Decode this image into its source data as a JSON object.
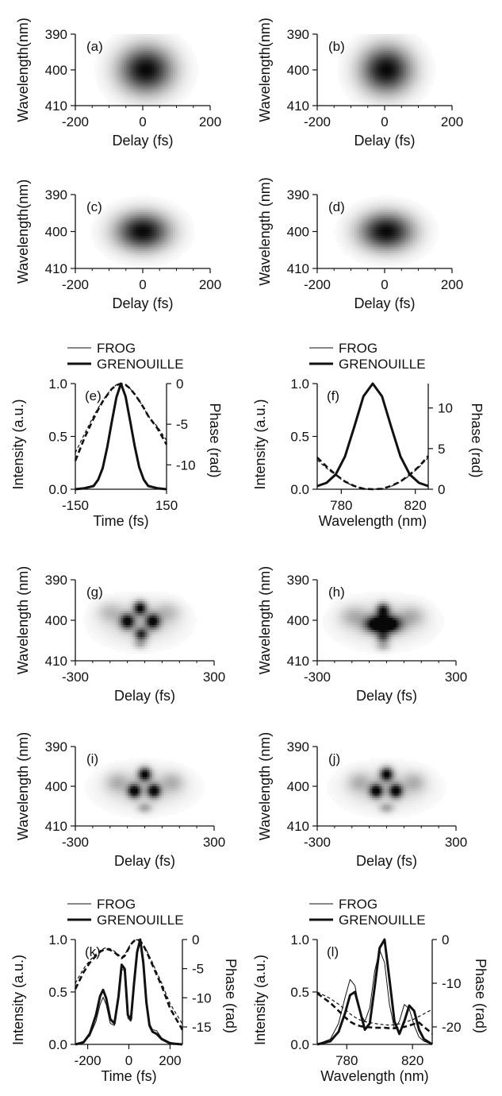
{
  "chart_data": [
    {
      "id": "a",
      "type": "heatmap",
      "panel_label": "(a)",
      "xlabel": "Delay (fs)",
      "ylabel": "Wavelength(nm)",
      "xlim": [
        -200,
        200
      ],
      "ylim": [
        410,
        390
      ],
      "xticks": [
        "-200",
        "0",
        "200"
      ],
      "yticks": [
        "390",
        "400",
        "410"
      ],
      "blobs": [
        {
          "x": 10,
          "y": 400,
          "sx": 55,
          "sy": 4.5,
          "amp": 1.0
        }
      ]
    },
    {
      "id": "b",
      "type": "heatmap",
      "panel_label": "(b)",
      "xlabel": "Delay (fs)",
      "ylabel": "Wavelength(nm)",
      "xlim": [
        -200,
        200
      ],
      "ylim": [
        410,
        390
      ],
      "xticks": [
        "-200",
        "0",
        "200"
      ],
      "yticks": [
        "390",
        "400",
        "410"
      ],
      "blobs": [
        {
          "x": 5,
          "y": 400,
          "sx": 52,
          "sy": 4.5,
          "amp": 1.0
        }
      ]
    },
    {
      "id": "c",
      "type": "heatmap",
      "panel_label": "(c)",
      "xlabel": "Delay (fs)",
      "ylabel": "Wavelength(nm)",
      "xlim": [
        -200,
        200
      ],
      "ylim": [
        410,
        390
      ],
      "xticks": [
        "-200",
        "0",
        "200"
      ],
      "yticks": [
        "390",
        "400",
        "410"
      ],
      "blobs": [
        {
          "x": 0,
          "y": 400,
          "sx": 55,
          "sy": 3.5,
          "amp": 1.0
        }
      ]
    },
    {
      "id": "d",
      "type": "heatmap",
      "panel_label": "(d)",
      "xlabel": "Delay (fs)",
      "ylabel": "Wavelength (nm)",
      "xlim": [
        -200,
        200
      ],
      "ylim": [
        410,
        390
      ],
      "xticks": [
        "-200",
        "0",
        "200"
      ],
      "yticks": [
        "390",
        "400",
        "410"
      ],
      "blobs": [
        {
          "x": 5,
          "y": 400,
          "sx": 55,
          "sy": 3.5,
          "amp": 1.0
        }
      ]
    },
    {
      "id": "e",
      "type": "line",
      "panel_label": "(e)",
      "legend": [
        "FROG",
        "GRENOUILLE"
      ],
      "xlabel": "Time (fs)",
      "ylabel": "Intensity (a.u.)",
      "y2label": "Phase (rad)",
      "xlim": [
        -150,
        150
      ],
      "ylim": [
        0,
        1.0
      ],
      "y2lim": [
        -13,
        0
      ],
      "xticks": [
        -150,
        150
      ],
      "xtick_labels": [
        "-150",
        "150"
      ],
      "yticks": [
        0.0,
        0.5,
        1.0
      ],
      "ytick_labels": [
        "0.0",
        "0.5",
        "1.0"
      ],
      "y2ticks": [
        0,
        -5,
        -10
      ],
      "y2tick_labels": [
        "0",
        "-5",
        "-10"
      ],
      "x": [
        -150,
        -120,
        -90,
        -75,
        -60,
        -45,
        -30,
        -15,
        0,
        15,
        30,
        45,
        60,
        75,
        90,
        120,
        150
      ],
      "series": [
        {
          "name": "FROG",
          "axis": "left",
          "style": "thin",
          "values": [
            0.0,
            0.01,
            0.04,
            0.1,
            0.22,
            0.42,
            0.66,
            0.88,
            1.0,
            0.89,
            0.67,
            0.43,
            0.22,
            0.1,
            0.04,
            0.01,
            0.0
          ]
        },
        {
          "name": "GRENOUILLE",
          "axis": "left",
          "style": "thick",
          "values": [
            0.0,
            0.01,
            0.03,
            0.09,
            0.2,
            0.4,
            0.64,
            0.87,
            1.0,
            0.88,
            0.65,
            0.41,
            0.21,
            0.09,
            0.03,
            0.01,
            0.0
          ]
        },
        {
          "axis": "right",
          "style": "thin-dash",
          "values": [
            -8.5,
            -6.2,
            -4.0,
            -3.0,
            -2.1,
            -1.3,
            -0.6,
            -0.15,
            0.0,
            -0.15,
            -0.6,
            -1.3,
            -2.1,
            -3.0,
            -4.0,
            -5.3,
            -7.0
          ]
        },
        {
          "axis": "right",
          "style": "thick-dash",
          "values": [
            -9.5,
            -6.7,
            -4.3,
            -3.2,
            -2.2,
            -1.4,
            -0.65,
            -0.2,
            0.0,
            -0.15,
            -0.6,
            -1.3,
            -2.1,
            -3.0,
            -4.0,
            -5.5,
            -7.5
          ]
        }
      ]
    },
    {
      "id": "f",
      "type": "line",
      "panel_label": "(f)",
      "legend": [
        "FROG",
        "GRENOUILLE"
      ],
      "xlabel": "Wavelength (nm)",
      "ylabel": "Intensity (a.u.)",
      "y2label": "Phase (rad)",
      "xlim": [
        767,
        827
      ],
      "ylim": [
        0,
        1.0
      ],
      "y2lim": [
        0,
        13
      ],
      "xticks": [
        780,
        820
      ],
      "xtick_labels": [
        "780",
        "820"
      ],
      "yticks": [
        0.0,
        0.5,
        1.0
      ],
      "ytick_labels": [
        "0.0",
        "0.5",
        "1.0"
      ],
      "y2ticks": [
        0,
        5,
        10
      ],
      "y2tick_labels": [
        "0",
        "5",
        "10"
      ],
      "x": [
        767,
        772,
        777,
        782,
        787,
        792,
        797,
        802,
        807,
        812,
        817,
        822,
        827
      ],
      "series": [
        {
          "name": "FROG",
          "axis": "left",
          "style": "thin",
          "values": [
            0.03,
            0.06,
            0.13,
            0.3,
            0.58,
            0.87,
            1.0,
            0.87,
            0.58,
            0.3,
            0.13,
            0.06,
            0.03
          ]
        },
        {
          "name": "GRENOUILLE",
          "axis": "left",
          "style": "thick",
          "values": [
            0.03,
            0.06,
            0.14,
            0.31,
            0.59,
            0.88,
            1.0,
            0.88,
            0.59,
            0.31,
            0.14,
            0.06,
            0.03
          ]
        },
        {
          "axis": "right",
          "style": "thin-dash",
          "values": [
            3.6,
            2.6,
            1.7,
            0.9,
            0.35,
            0.05,
            0.0,
            0.05,
            0.35,
            0.9,
            1.7,
            2.7,
            3.9
          ]
        },
        {
          "axis": "right",
          "style": "thick-dash",
          "values": [
            3.9,
            2.8,
            1.8,
            0.95,
            0.4,
            0.06,
            0.0,
            0.06,
            0.4,
            0.95,
            1.8,
            2.8,
            4.1
          ]
        }
      ]
    },
    {
      "id": "g",
      "type": "heatmap",
      "panel_label": "(g)",
      "xlabel": "Delay (fs)",
      "ylabel": "Wavelength (nm)",
      "xlim": [
        -300,
        300
      ],
      "ylim": [
        410,
        390
      ],
      "xticks": [
        "-300",
        "300"
      ],
      "yticks": [
        "390",
        "400",
        "410"
      ],
      "blobs": [
        {
          "x": -20,
          "y": 397,
          "sx": 20,
          "sy": 1.2,
          "amp": 0.9
        },
        {
          "x": -75,
          "y": 400.3,
          "sx": 22,
          "sy": 1.3,
          "amp": 0.9
        },
        {
          "x": 35,
          "y": 400.3,
          "sx": 22,
          "sy": 1.3,
          "amp": 0.9
        },
        {
          "x": -15,
          "y": 403.5,
          "sx": 20,
          "sy": 1.1,
          "amp": 0.75
        },
        {
          "x": -20,
          "y": 400.5,
          "sx": 110,
          "sy": 3.5,
          "amp": 0.22
        },
        {
          "x": -150,
          "y": 398,
          "sx": 40,
          "sy": 1.8,
          "amp": 0.2
        },
        {
          "x": 100,
          "y": 398,
          "sx": 40,
          "sy": 1.8,
          "amp": 0.2
        },
        {
          "x": -20,
          "y": 406,
          "sx": 20,
          "sy": 0.8,
          "amp": 0.25
        }
      ]
    },
    {
      "id": "h",
      "type": "heatmap",
      "panel_label": "(h)",
      "xlabel": "Delay (fs)",
      "ylabel": "Wavelength (nm)",
      "xlim": [
        -300,
        300
      ],
      "ylim": [
        410,
        390
      ],
      "xticks": [
        "-300",
        "300"
      ],
      "yticks": [
        "390",
        "400",
        "410"
      ],
      "blobs": [
        {
          "x": -15,
          "y": 397.5,
          "sx": 20,
          "sy": 1.2,
          "amp": 0.8
        },
        {
          "x": -45,
          "y": 401,
          "sx": 35,
          "sy": 1.4,
          "amp": 0.95
        },
        {
          "x": 15,
          "y": 401,
          "sx": 35,
          "sy": 1.4,
          "amp": 0.95
        },
        {
          "x": -15,
          "y": 404.2,
          "sx": 20,
          "sy": 1.0,
          "amp": 0.55
        },
        {
          "x": -15,
          "y": 400.5,
          "sx": 120,
          "sy": 3.5,
          "amp": 0.22
        },
        {
          "x": -145,
          "y": 399,
          "sx": 40,
          "sy": 1.8,
          "amp": 0.22
        },
        {
          "x": 110,
          "y": 399,
          "sx": 40,
          "sy": 1.8,
          "amp": 0.22
        },
        {
          "x": -15,
          "y": 406.5,
          "sx": 22,
          "sy": 0.8,
          "amp": 0.25
        }
      ]
    },
    {
      "id": "i",
      "type": "heatmap",
      "panel_label": "(i)",
      "xlabel": "Delay (fs)",
      "ylabel": "Wavelength (nm)",
      "xlim": [
        -300,
        300
      ],
      "ylim": [
        410,
        390
      ],
      "xticks": [
        "-300",
        "300"
      ],
      "yticks": [
        "390",
        "400",
        "410"
      ],
      "blobs": [
        {
          "x": 0,
          "y": 397,
          "sx": 20,
          "sy": 1.2,
          "amp": 0.95
        },
        {
          "x": -45,
          "y": 401.2,
          "sx": 20,
          "sy": 1.2,
          "amp": 0.95
        },
        {
          "x": 40,
          "y": 401.2,
          "sx": 20,
          "sy": 1.2,
          "amp": 0.95
        },
        {
          "x": 0,
          "y": 400.5,
          "sx": 120,
          "sy": 3.5,
          "amp": 0.2
        },
        {
          "x": -120,
          "y": 399,
          "sx": 35,
          "sy": 1.8,
          "amp": 0.22
        },
        {
          "x": 120,
          "y": 399,
          "sx": 35,
          "sy": 1.8,
          "amp": 0.22
        },
        {
          "x": 0,
          "y": 405.5,
          "sx": 22,
          "sy": 0.9,
          "amp": 0.3
        }
      ]
    },
    {
      "id": "j",
      "type": "heatmap",
      "panel_label": "(j)",
      "xlabel": "Delay (fs)",
      "ylabel": "Wavelength (nm)",
      "xlim": [
        -300,
        300
      ],
      "ylim": [
        410,
        390
      ],
      "xticks": [
        "-300",
        "300"
      ],
      "yticks": [
        "390",
        "400",
        "410"
      ],
      "blobs": [
        {
          "x": 0,
          "y": 397,
          "sx": 20,
          "sy": 1.2,
          "amp": 0.95
        },
        {
          "x": -45,
          "y": 401.2,
          "sx": 20,
          "sy": 1.2,
          "amp": 0.95
        },
        {
          "x": 40,
          "y": 401.2,
          "sx": 20,
          "sy": 1.2,
          "amp": 0.95
        },
        {
          "x": 0,
          "y": 400.5,
          "sx": 120,
          "sy": 3.5,
          "amp": 0.2
        },
        {
          "x": -120,
          "y": 399,
          "sx": 35,
          "sy": 1.8,
          "amp": 0.22
        },
        {
          "x": 120,
          "y": 399,
          "sx": 35,
          "sy": 1.8,
          "amp": 0.22
        },
        {
          "x": 0,
          "y": 405.5,
          "sx": 22,
          "sy": 0.9,
          "amp": 0.3
        }
      ]
    },
    {
      "id": "k",
      "type": "line",
      "panel_label": "(k)",
      "legend": [
        "FROG",
        "GRENOUILLE"
      ],
      "xlabel": "Time (fs)",
      "ylabel": "Intensity (a.u.)",
      "y2label": "Phase (rad)",
      "xlim": [
        -260,
        260
      ],
      "ylim": [
        0,
        1.0
      ],
      "y2lim": [
        -18,
        0
      ],
      "xticks": [
        -200,
        0,
        200
      ],
      "xtick_labels": [
        "-200",
        "0",
        "200"
      ],
      "yticks": [
        0.0,
        0.5,
        1.0
      ],
      "ytick_labels": [
        "0.0",
        "0.5",
        "1.0"
      ],
      "y2ticks": [
        0,
        -5,
        -10,
        -15
      ],
      "y2tick_labels": [
        "0",
        "-5",
        "-10",
        "-15"
      ],
      "x": [
        -260,
        -220,
        -190,
        -160,
        -140,
        -125,
        -110,
        -90,
        -70,
        -50,
        -35,
        -20,
        -5,
        10,
        25,
        40,
        55,
        70,
        85,
        100,
        115,
        135,
        160,
        200,
        260
      ],
      "series": [
        {
          "name": "FROG",
          "axis": "left",
          "style": "thin",
          "values": [
            0.0,
            0.03,
            0.08,
            0.22,
            0.38,
            0.45,
            0.38,
            0.2,
            0.18,
            0.42,
            0.72,
            0.7,
            0.25,
            0.22,
            0.55,
            0.85,
            1.0,
            0.78,
            0.42,
            0.2,
            0.14,
            0.13,
            0.06,
            0.02,
            0.0
          ]
        },
        {
          "name": "GRENOUILLE",
          "axis": "left",
          "style": "thick",
          "values": [
            0.0,
            0.02,
            0.1,
            0.28,
            0.46,
            0.52,
            0.44,
            0.24,
            0.2,
            0.46,
            0.76,
            0.72,
            0.28,
            0.24,
            0.58,
            0.88,
            1.0,
            0.78,
            0.4,
            0.18,
            0.12,
            0.1,
            0.05,
            0.01,
            0.0
          ]
        },
        {
          "axis": "right",
          "style": "thin-dash",
          "values": [
            -7.5,
            -5.0,
            -3.6,
            -2.5,
            -1.9,
            -1.6,
            -1.4,
            -1.6,
            -2.0,
            -2.6,
            -3.0,
            -2.6,
            -1.6,
            -0.7,
            -0.2,
            0.0,
            -0.2,
            -0.9,
            -1.8,
            -2.9,
            -4.0,
            -5.6,
            -7.5,
            -11.0,
            -14.5
          ]
        },
        {
          "axis": "right",
          "style": "thick-dash",
          "values": [
            -8.5,
            -5.6,
            -4.0,
            -2.8,
            -2.1,
            -1.8,
            -1.6,
            -1.8,
            -2.2,
            -2.8,
            -3.2,
            -2.8,
            -1.8,
            -0.8,
            -0.25,
            0.0,
            -0.25,
            -1.0,
            -2.0,
            -3.2,
            -4.4,
            -6.0,
            -8.0,
            -11.8,
            -15.5
          ]
        }
      ]
    },
    {
      "id": "l",
      "type": "line",
      "panel_label": "(l)",
      "legend": [
        "FROG",
        "GRENOUILLE"
      ],
      "xlabel": "Wavelength (nm)",
      "ylabel": "Intensity (a.u.)",
      "y2label": "Phase (rad)",
      "xlim": [
        762,
        832
      ],
      "ylim": [
        0,
        1.0
      ],
      "y2lim": [
        -24,
        0
      ],
      "xticks": [
        780,
        820
      ],
      "xtick_labels": [
        "780",
        "820"
      ],
      "yticks": [
        0.0,
        0.5,
        1.0
      ],
      "ytick_labels": [
        "0.0",
        "0.5",
        "1.0"
      ],
      "y2ticks": [
        0,
        -10,
        -20
      ],
      "y2tick_labels": [
        "0",
        "-10",
        "-20"
      ],
      "x": [
        762,
        770,
        775,
        779,
        782,
        785,
        788,
        791,
        794,
        797,
        800,
        803,
        806,
        809,
        812,
        815,
        818,
        821,
        824,
        827,
        832
      ],
      "series": [
        {
          "name": "FROG",
          "axis": "left",
          "style": "thin",
          "values": [
            0.0,
            0.05,
            0.2,
            0.45,
            0.62,
            0.56,
            0.3,
            0.22,
            0.35,
            0.7,
            0.9,
            0.78,
            0.38,
            0.15,
            0.22,
            0.38,
            0.34,
            0.18,
            0.07,
            0.03,
            0.0
          ]
        },
        {
          "name": "GRENOUILLE",
          "axis": "left",
          "style": "thick",
          "values": [
            0.0,
            0.03,
            0.12,
            0.3,
            0.47,
            0.5,
            0.32,
            0.14,
            0.2,
            0.55,
            0.92,
            1.0,
            0.62,
            0.22,
            0.1,
            0.22,
            0.37,
            0.32,
            0.14,
            0.05,
            0.0
          ]
        },
        {
          "axis": "right",
          "style": "thin-dash",
          "values": [
            -12.0,
            -13.5,
            -14.8,
            -16.0,
            -17.0,
            -17.8,
            -18.4,
            -18.8,
            -19.0,
            -19.2,
            -19.4,
            -19.5,
            -19.6,
            -19.5,
            -19.3,
            -19.0,
            -18.6,
            -18.2,
            -17.6,
            -17.0,
            -16.0
          ]
        },
        {
          "axis": "right",
          "style": "thick-dash",
          "values": [
            -12.3,
            -14.5,
            -16.3,
            -17.8,
            -18.8,
            -19.4,
            -19.8,
            -20.0,
            -20.1,
            -20.2,
            -20.2,
            -20.2,
            -20.3,
            -20.3,
            -20.2,
            -20.0,
            -19.7,
            -19.3,
            -19.0,
            -20.0,
            -21.5
          ]
        }
      ]
    }
  ]
}
